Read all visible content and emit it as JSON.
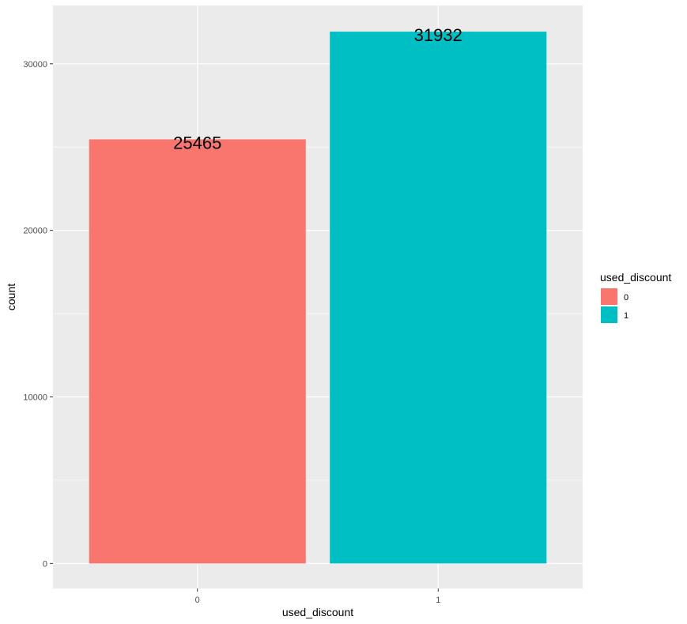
{
  "chart_data": {
    "type": "bar",
    "categories": [
      "0",
      "1"
    ],
    "values": [
      25465,
      31932
    ],
    "data_labels": [
      "25465",
      "31932"
    ],
    "xlabel": "used_discount",
    "ylabel": "count",
    "ylim": [
      -1500,
      33500
    ],
    "yticks": [
      0,
      10000,
      20000,
      30000
    ],
    "ytick_labels": [
      "0",
      "10000",
      "20000",
      "30000"
    ],
    "colors": [
      "#F8766D",
      "#00BFC4"
    ],
    "grid": true,
    "legend": {
      "title": "used_discount",
      "position": "right",
      "entries": [
        {
          "label": "0",
          "color": "#F8766D"
        },
        {
          "label": "1",
          "color": "#00BFC4"
        }
      ]
    }
  }
}
